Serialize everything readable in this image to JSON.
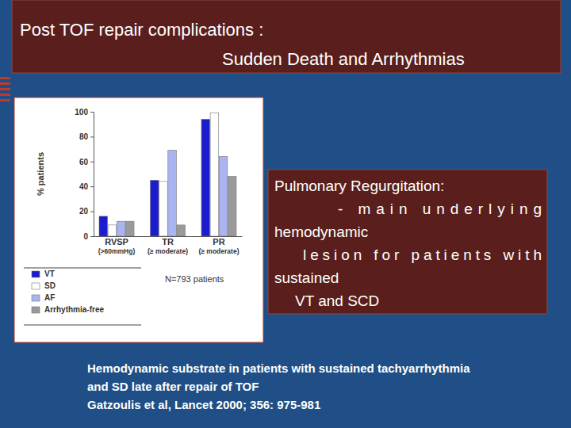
{
  "slide": {
    "title": [
      "Post TOF repair complications :",
      "Sudden Death and Arrhythmias"
    ],
    "callout": [
      "Pulmonary Regurgitation:",
      "- main underlying",
      "hemodynamic",
      "lesion for patients with",
      "sustained",
      "VT and SCD"
    ],
    "caption": [
      "Hemodynamic substrate in patients with sustained tachyarrhythmia",
      "and  SD late after repair of TOF",
      "Gatzoulis et al, Lancet 2000; 356: 975-981"
    ]
  },
  "chart_data": {
    "type": "bar",
    "y_label": "% patients",
    "annotation": "N=793 patients",
    "categories": [
      "RVSP\n(>60mmHg)",
      "TR\n(≥ moderate)",
      "PR\n(≥ moderate)"
    ],
    "series": [
      {
        "name": "VT",
        "color": "#1c1ccf",
        "values": [
          16,
          45,
          94
        ]
      },
      {
        "name": "SD",
        "color": "#ffffff",
        "values": [
          9,
          44,
          99
        ]
      },
      {
        "name": "AF",
        "color": "#aab4f0",
        "values": [
          12,
          69,
          64
        ]
      },
      {
        "name": "Arrhythmia-free",
        "color": "#9a9a9a",
        "values": [
          12,
          9,
          48
        ]
      }
    ],
    "ylim": [
      0,
      100
    ],
    "yticks": [
      0,
      20,
      40,
      60,
      80,
      100
    ],
    "grid": false,
    "legend": "bottom"
  }
}
